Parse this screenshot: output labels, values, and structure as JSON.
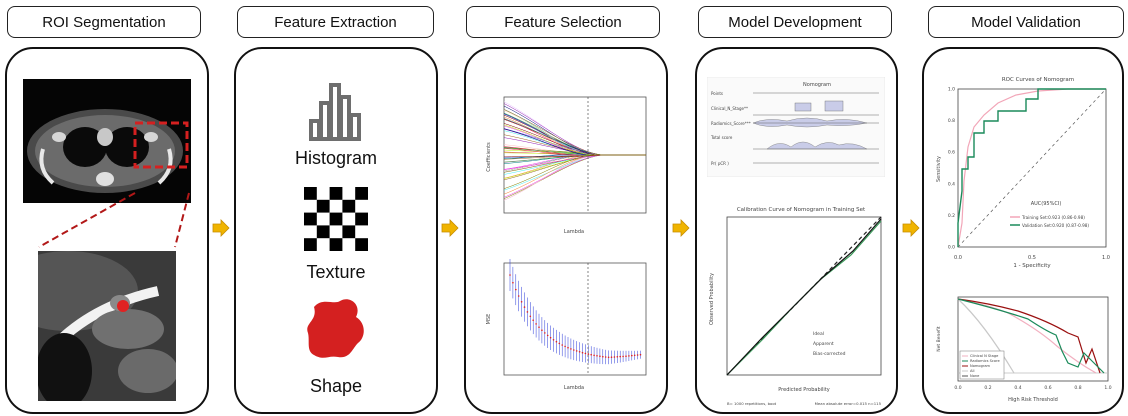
{
  "steps": [
    {
      "title": "ROI Segmentation"
    },
    {
      "title": "Feature Extraction"
    },
    {
      "title": "Feature Selection"
    },
    {
      "title": "Model Development"
    },
    {
      "title": "Model Validation"
    }
  ],
  "extraction": {
    "histogram": "Histogram",
    "texture": "Texture",
    "shape": "Shape"
  },
  "selection": {
    "coef_ylabel": "Coefficients",
    "coef_xlabel": "Lambda",
    "mse_ylabel": "MSE",
    "mse_xlabel": "Lambda"
  },
  "nomogram": {
    "title": "Nomogram",
    "rows": [
      "Points",
      "Clinical_N_Stage**",
      "Radiomics_Score***",
      "Total score",
      "Pr( pCR )"
    ]
  },
  "calibration": {
    "title": "Calibration Curve of Nomogram in Training Set",
    "xlabel": "Predicted Probability",
    "ylabel": "Observed Probability",
    "legend": [
      "Ideal",
      "Apparent",
      "Bias-corrected"
    ],
    "footer_left": "B= 1000 repetitions, boot",
    "footer_right": "Mean absolute error=0.015 n=115"
  },
  "roc": {
    "title": "ROC Curves of Nomogram",
    "xlabel": "1 - Specificity",
    "ylabel": "Sensitivity",
    "legend_title": "AUC(95%CI)",
    "legend": [
      "Training Set:0.923 (0.86-0.98)",
      "Validation Set:0.920 (0.87-0.98)"
    ],
    "ticks": [
      "0.0",
      "0.5",
      "1.0"
    ],
    "yticks": [
      "0.0",
      "0.2",
      "0.4",
      "0.6",
      "0.8",
      "1.0"
    ]
  },
  "dca": {
    "xlabel": "High Risk Threshold",
    "ylabel": "Net Benefit",
    "legend": [
      "Clinical N Stage",
      "Radiomics Score",
      "Nomogram",
      "All",
      "None"
    ],
    "xticks": [
      "0.0",
      "0.2",
      "0.4",
      "0.6",
      "0.8",
      "1.0"
    ]
  },
  "colors": {
    "arrow": "#f0b400",
    "accent_red": "#d42020",
    "roc_green": "#1a8a5a",
    "roc_pink": "#f2a6b8",
    "mse_blue": "#2a3bd8"
  }
}
